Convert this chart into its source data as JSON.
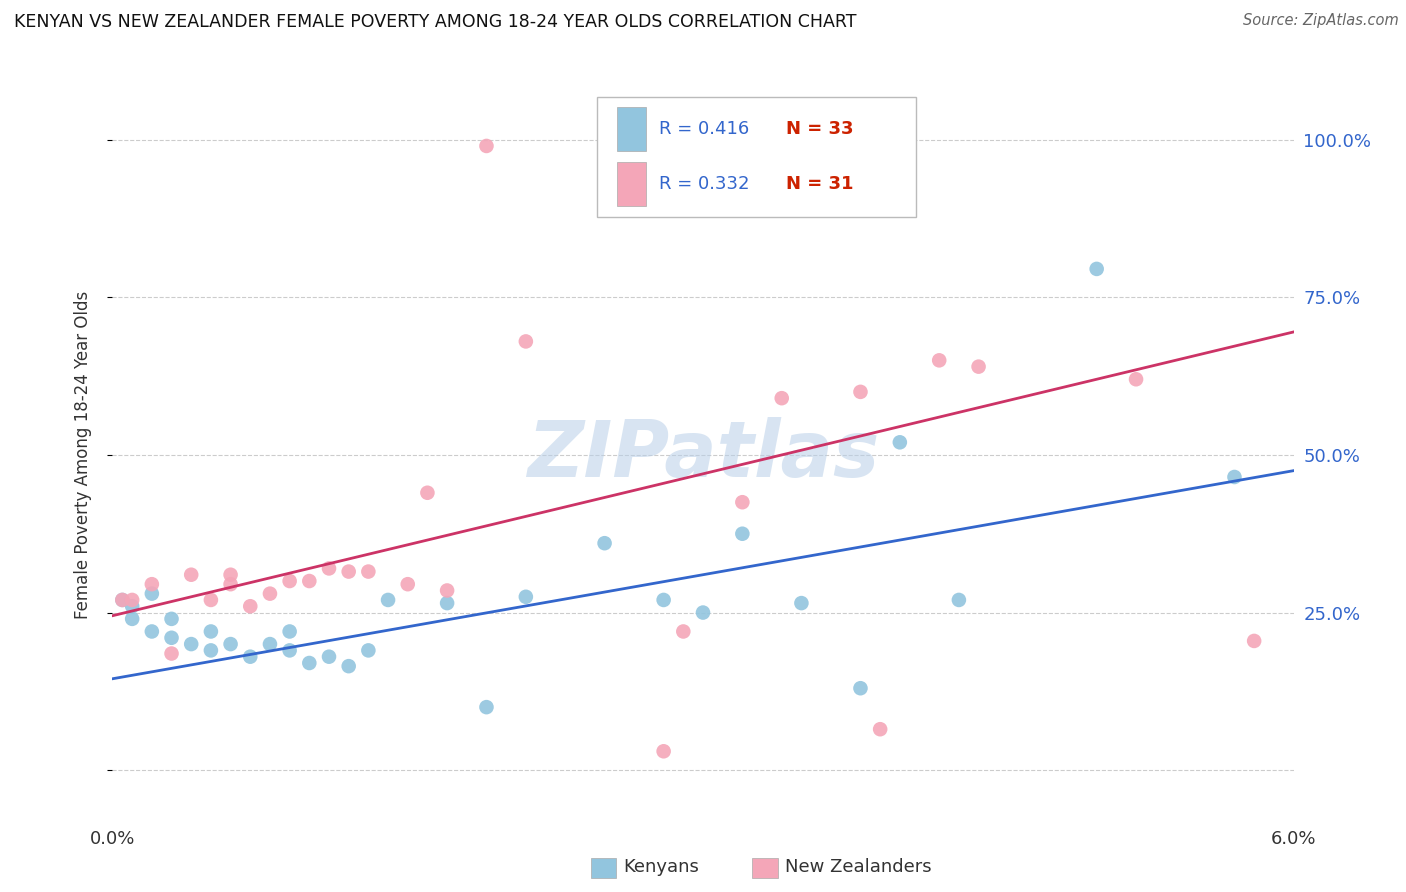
{
  "title": "KENYAN VS NEW ZEALANDER FEMALE POVERTY AMONG 18-24 YEAR OLDS CORRELATION CHART",
  "source": "Source: ZipAtlas.com",
  "ylabel": "Female Poverty Among 18-24 Year Olds",
  "watermark": "ZIPatlas",
  "legend_blue_r": "0.416",
  "legend_blue_n": "33",
  "legend_pink_r": "0.332",
  "legend_pink_n": "31",
  "legend_labels": [
    "Kenyans",
    "New Zealanders"
  ],
  "blue_color": "#92c5de",
  "pink_color": "#f4a6b8",
  "line_blue": "#3366cc",
  "line_pink": "#cc3366",
  "text_blue": "#3366cc",
  "text_red": "#cc2200",
  "xmin": 0.0,
  "xmax": 0.06,
  "ymin": -0.08,
  "ymax": 1.08,
  "blue_scatter_x": [
    0.0005,
    0.001,
    0.001,
    0.002,
    0.002,
    0.003,
    0.003,
    0.004,
    0.005,
    0.005,
    0.006,
    0.007,
    0.008,
    0.009,
    0.009,
    0.01,
    0.011,
    0.012,
    0.013,
    0.014,
    0.017,
    0.019,
    0.021,
    0.025,
    0.028,
    0.03,
    0.032,
    0.035,
    0.038,
    0.04,
    0.043,
    0.05,
    0.057
  ],
  "blue_scatter_y": [
    0.27,
    0.24,
    0.26,
    0.22,
    0.28,
    0.21,
    0.24,
    0.2,
    0.22,
    0.19,
    0.2,
    0.18,
    0.2,
    0.22,
    0.19,
    0.17,
    0.18,
    0.165,
    0.19,
    0.27,
    0.265,
    0.1,
    0.275,
    0.36,
    0.27,
    0.25,
    0.375,
    0.265,
    0.13,
    0.52,
    0.27,
    0.795,
    0.465
  ],
  "pink_scatter_x": [
    0.0005,
    0.001,
    0.002,
    0.003,
    0.004,
    0.005,
    0.006,
    0.006,
    0.007,
    0.008,
    0.009,
    0.01,
    0.011,
    0.012,
    0.013,
    0.015,
    0.016,
    0.017,
    0.019,
    0.021,
    0.025,
    0.028,
    0.029,
    0.032,
    0.034,
    0.038,
    0.039,
    0.042,
    0.044,
    0.052,
    0.058
  ],
  "pink_scatter_y": [
    0.27,
    0.27,
    0.295,
    0.185,
    0.31,
    0.27,
    0.295,
    0.31,
    0.26,
    0.28,
    0.3,
    0.3,
    0.32,
    0.315,
    0.315,
    0.295,
    0.44,
    0.285,
    0.99,
    0.68,
    0.99,
    0.03,
    0.22,
    0.425,
    0.59,
    0.6,
    0.065,
    0.65,
    0.64,
    0.62,
    0.205
  ],
  "blue_line_x": [
    0.0,
    0.06
  ],
  "blue_line_y": [
    0.145,
    0.475
  ],
  "pink_line_x": [
    0.0,
    0.06
  ],
  "pink_line_y": [
    0.245,
    0.695
  ]
}
